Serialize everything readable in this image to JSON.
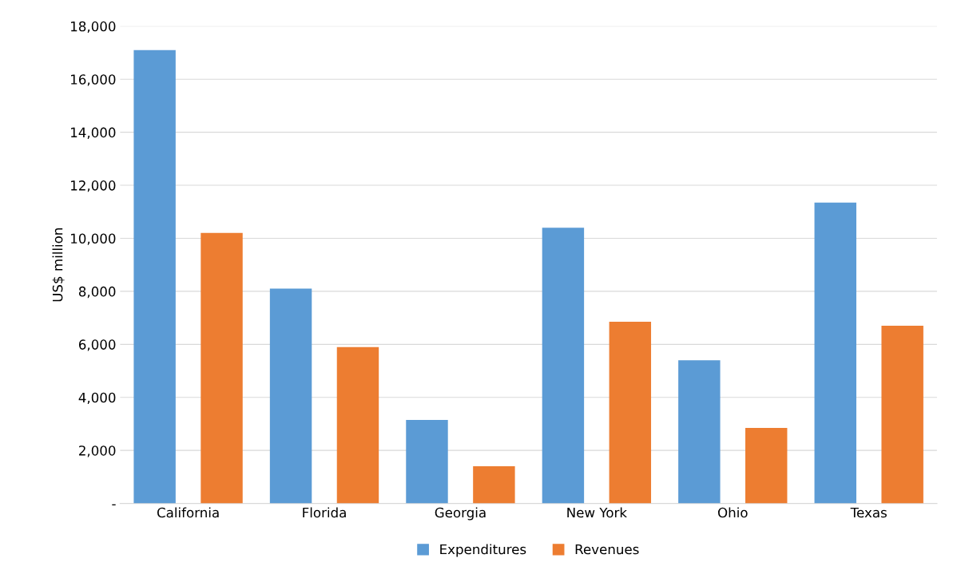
{
  "chart_data": {
    "type": "bar",
    "ylabel": "US$ million",
    "categories": [
      "California",
      "Florida",
      "Georgia",
      "New York",
      "Ohio",
      "Texas"
    ],
    "series": [
      {
        "name": "Expenditures",
        "color": "#5b9bd5",
        "values": [
          17100,
          8100,
          3150,
          10400,
          5400,
          11350
        ]
      },
      {
        "name": "Revenues",
        "color": "#ed7d31",
        "values": [
          10200,
          5900,
          1400,
          6850,
          2850,
          6700
        ]
      }
    ],
    "ylim": [
      0,
      18000
    ],
    "yticks": [
      {
        "value": 0,
        "label": "-"
      },
      {
        "value": 2000,
        "label": "2,000"
      },
      {
        "value": 4000,
        "label": "4,000"
      },
      {
        "value": 6000,
        "label": "6,000"
      },
      {
        "value": 8000,
        "label": "8,000"
      },
      {
        "value": 10000,
        "label": "10,000"
      },
      {
        "value": 12000,
        "label": "12,000"
      },
      {
        "value": 14000,
        "label": "14,000"
      },
      {
        "value": 16000,
        "label": "16,000"
      },
      {
        "value": 18000,
        "label": "18,000"
      }
    ],
    "grid": "y",
    "legend": "bottom"
  }
}
